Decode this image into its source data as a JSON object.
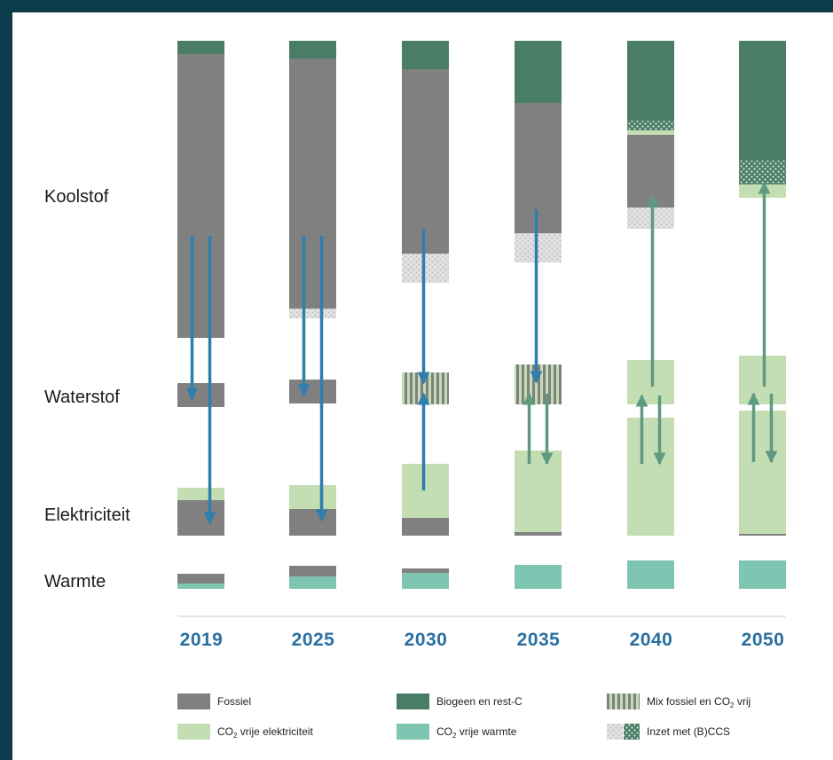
{
  "chart_data": {
    "type": "stacked-bar-flow",
    "title": "",
    "rows": [
      "Koolstof",
      "Waterstof",
      "Elektriciteit",
      "Warmte"
    ],
    "years": [
      "2019",
      "2025",
      "2030",
      "2035",
      "2040",
      "2050"
    ],
    "colors": {
      "fossil": "#808080",
      "biogenic": "#4a7d66",
      "co2free_elec": "#c4deb4",
      "co2free_heat": "#7fc6b2",
      "mix": "#a8b29f",
      "ccs": "#d6d6d6",
      "arrow_fossil": "#2f7eae",
      "arrow_green": "#5f9a80",
      "divider": "#cccccc"
    },
    "legend": [
      {
        "key": "fossil",
        "label": "Fossiel"
      },
      {
        "key": "biogenic",
        "label": "Biogeen en rest-C"
      },
      {
        "key": "mix",
        "label": "Mix fossiel en CO",
        "sub": "2",
        "suffix": " vrij"
      },
      {
        "key": "co2free_elec",
        "label": "CO",
        "sub": "2",
        "suffix": " vrije elektriciteit"
      },
      {
        "key": "co2free_heat",
        "label": "CO",
        "sub": "2",
        "suffix": " vrije warmte"
      },
      {
        "key": "ccs",
        "label": "Inzet met (B)CCS"
      }
    ],
    "columns": [
      {
        "year": "2019",
        "segments": [
          {
            "row": "Koolstof",
            "type": "biogenic",
            "from": 0,
            "to": 15
          },
          {
            "row": "Koolstof",
            "type": "fossil",
            "from": 15,
            "to": 335
          },
          {
            "row": "Waterstof",
            "type": "fossil",
            "from": 0,
            "to": 27
          },
          {
            "row": "Elektriciteit",
            "type": "co2free_elec",
            "from": 0,
            "to": 14
          },
          {
            "row": "Elektriciteit",
            "type": "fossil",
            "from": 14,
            "to": 54
          },
          {
            "row": "Warmte",
            "type": "fossil",
            "from": 0,
            "to": 11
          },
          {
            "row": "Warmte",
            "type": "co2free_heat",
            "from": 11,
            "to": 17
          }
        ],
        "arrows": [
          {
            "kind": "fossil",
            "dx": -10,
            "from": [
              "Koolstof",
              220
            ],
            "to": [
              "Waterstof",
              18
            ]
          },
          {
            "kind": "fossil",
            "dx": 10,
            "from": [
              "Koolstof",
              220
            ],
            "to": [
              "Elektriciteit",
              40
            ]
          }
        ]
      },
      {
        "year": "2025",
        "segments": [
          {
            "row": "Koolstof",
            "type": "biogenic",
            "from": 0,
            "to": 20
          },
          {
            "row": "Koolstof",
            "type": "fossil",
            "from": 20,
            "to": 302
          },
          {
            "row": "Koolstof",
            "type": "ccs",
            "from": 302,
            "to": 313
          },
          {
            "row": "Waterstof",
            "type": "fossil",
            "from": 0,
            "to": 27
          },
          {
            "row": "Elektriciteit",
            "type": "co2free_elec",
            "from": 0,
            "to": 27
          },
          {
            "row": "Elektriciteit",
            "type": "fossil",
            "from": 27,
            "to": 57
          },
          {
            "row": "Warmte",
            "type": "fossil",
            "from": 0,
            "to": 12
          },
          {
            "row": "Warmte",
            "type": "co2free_heat",
            "from": 12,
            "to": 26
          }
        ],
        "arrows": [
          {
            "kind": "fossil",
            "dx": -10,
            "from": [
              "Koolstof",
              220
            ],
            "to": [
              "Waterstof",
              18
            ]
          },
          {
            "kind": "fossil",
            "dx": 10,
            "from": [
              "Koolstof",
              220
            ],
            "to": [
              "Elektriciteit",
              40
            ]
          }
        ]
      },
      {
        "year": "2030",
        "segments": [
          {
            "row": "Koolstof",
            "type": "biogenic",
            "from": 0,
            "to": 32
          },
          {
            "row": "Koolstof",
            "type": "fossil",
            "from": 32,
            "to": 240
          },
          {
            "row": "Koolstof",
            "type": "ccs",
            "from": 240,
            "to": 273
          },
          {
            "row": "Waterstof",
            "type": "mix",
            "from": 0,
            "to": 36
          },
          {
            "row": "Elektriciteit",
            "type": "co2free_elec",
            "from": 0,
            "to": 61
          },
          {
            "row": "Elektriciteit",
            "type": "fossil",
            "from": 61,
            "to": 81
          },
          {
            "row": "Warmte",
            "type": "fossil",
            "from": 0,
            "to": 5
          },
          {
            "row": "Warmte",
            "type": "co2free_heat",
            "from": 5,
            "to": 23
          }
        ],
        "arrows": [
          {
            "kind": "fossil",
            "dx": -2,
            "from": [
              "Koolstof",
              212
            ],
            "to": [
              "Waterstof",
              12
            ]
          },
          {
            "kind": "fossil",
            "dx": -2,
            "from": [
              "Elektriciteit",
              30
            ],
            "to": [
              "Waterstof",
              24
            ]
          }
        ]
      },
      {
        "year": "2035",
        "segments": [
          {
            "row": "Koolstof",
            "type": "biogenic",
            "from": 0,
            "to": 70
          },
          {
            "row": "Koolstof",
            "type": "fossil",
            "from": 70,
            "to": 217
          },
          {
            "row": "Koolstof",
            "type": "ccs",
            "from": 217,
            "to": 250
          },
          {
            "row": "Waterstof",
            "type": "mix",
            "from": 0,
            "to": 45
          },
          {
            "row": "Elektriciteit",
            "type": "co2free_elec",
            "from": 0,
            "to": 92
          },
          {
            "row": "Elektriciteit",
            "type": "fossil",
            "from": 92,
            "to": 96
          },
          {
            "row": "Warmte",
            "type": "co2free_heat",
            "from": 0,
            "to": 27
          }
        ],
        "arrows": [
          {
            "kind": "fossil",
            "dx": -2,
            "from": [
              "Koolstof",
              190
            ],
            "to": [
              "Waterstof",
              20
            ]
          },
          {
            "kind": "green",
            "dx": -10,
            "from": [
              "Elektriciteit",
              15
            ],
            "to": [
              "Waterstof",
              33
            ]
          },
          {
            "kind": "green",
            "dx": 10,
            "from": [
              "Waterstof",
              33
            ],
            "to": [
              "Elektriciteit",
              15
            ]
          }
        ]
      },
      {
        "year": "2040",
        "segments": [
          {
            "row": "Koolstof",
            "type": "biogenic",
            "from": 0,
            "to": 90
          },
          {
            "row": "Koolstof",
            "type": "ccs_bio",
            "from": 90,
            "to": 101
          },
          {
            "row": "Koolstof",
            "type": "co2free_elec",
            "from": 101,
            "to": 106
          },
          {
            "row": "Koolstof",
            "type": "fossil",
            "from": 106,
            "to": 188
          },
          {
            "row": "Koolstof",
            "type": "ccs",
            "from": 188,
            "to": 212
          },
          {
            "row": "Waterstof",
            "type": "co2free_elec",
            "from": 0,
            "to": 50
          },
          {
            "row": "Elektriciteit",
            "type": "co2free_elec",
            "from": 0,
            "to": 133
          },
          {
            "row": "Warmte",
            "type": "co2free_heat",
            "from": 0,
            "to": 32
          }
        ],
        "arrows": [
          {
            "kind": "green",
            "dx": 2,
            "from": [
              "Waterstof",
              30
            ],
            "to": [
              "Koolstof",
              175
            ]
          },
          {
            "kind": "green",
            "dx": -10,
            "from": [
              "Elektriciteit",
              52
            ],
            "to": [
              "Waterstof",
              40
            ]
          },
          {
            "kind": "green",
            "dx": 10,
            "from": [
              "Waterstof",
              40
            ],
            "to": [
              "Elektriciteit",
              52
            ]
          }
        ]
      },
      {
        "year": "2050",
        "segments": [
          {
            "row": "Koolstof",
            "type": "biogenic",
            "from": 0,
            "to": 135
          },
          {
            "row": "Koolstof",
            "type": "ccs_bio",
            "from": 135,
            "to": 162
          },
          {
            "row": "Koolstof",
            "type": "co2free_elec",
            "from": 162,
            "to": 177
          },
          {
            "row": "Waterstof",
            "type": "co2free_elec",
            "from": 0,
            "to": 55
          },
          {
            "row": "Elektriciteit",
            "type": "co2free_elec",
            "from": 0,
            "to": 139
          },
          {
            "row": "Elektriciteit",
            "type": "fossil",
            "from": 139,
            "to": 141
          },
          {
            "row": "Warmte",
            "type": "co2free_heat",
            "from": 0,
            "to": 32
          }
        ],
        "arrows": [
          {
            "kind": "green",
            "dx": 2,
            "from": [
              "Waterstof",
              35
            ],
            "to": [
              "Koolstof",
              160
            ]
          },
          {
            "kind": "green",
            "dx": -10,
            "from": [
              "Elektriciteit",
              58
            ],
            "to": [
              "Waterstof",
              43
            ]
          },
          {
            "kind": "green",
            "dx": 10,
            "from": [
              "Waterstof",
              43
            ],
            "to": [
              "Elektriciteit",
              58
            ]
          }
        ]
      }
    ]
  }
}
